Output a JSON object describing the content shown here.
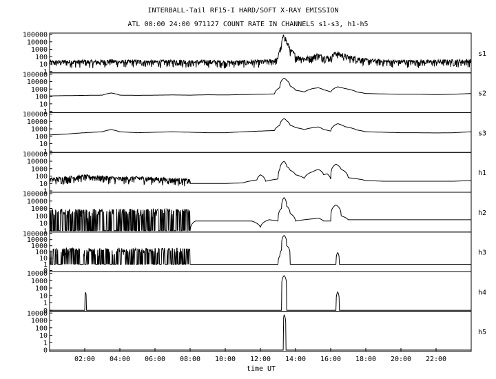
{
  "header": {
    "title_line1": "INTERBALL-Tail RF15-I HARD/SOFT X-RAY EMISSION",
    "title_line2": "ATL 00:00 24:00 971127  COUNT RATE IN CHANNELS s1-s3, h1-h5"
  },
  "colors": {
    "line": "#000000",
    "background": "#ffffff"
  },
  "chart_data": {
    "type": "line",
    "title": "INTERBALL-Tail RF15-I HARD/SOFT X-RAY EMISSION",
    "subtitle": "ATL 00:00 24:00 971127  COUNT RATE IN CHANNELS s1-s3, h1-h5",
    "xlabel": "time UT",
    "xlim": [
      0,
      24
    ],
    "x_ticks": [
      {
        "value": 2,
        "label": "02:00"
      },
      {
        "value": 4,
        "label": "04:00"
      },
      {
        "value": 6,
        "label": "06:00"
      },
      {
        "value": 8,
        "label": "08:00"
      },
      {
        "value": 10,
        "label": "10:00"
      },
      {
        "value": 12,
        "label": "12:00"
      },
      {
        "value": 14,
        "label": "14:00"
      },
      {
        "value": 16,
        "label": "16:00"
      },
      {
        "value": 18,
        "label": "18:00"
      },
      {
        "value": 20,
        "label": "20:00"
      },
      {
        "value": 22,
        "label": "22:00"
      }
    ],
    "y_scale": "log",
    "panels": [
      {
        "name": "s1",
        "y_ticks": [
          "100000",
          "10000",
          "1000",
          "100",
          "10",
          "1"
        ],
        "y_tick_values": [
          100000,
          10000,
          1000,
          100,
          10,
          1
        ],
        "ylim": [
          1,
          100000
        ],
        "points": [
          [
            0,
            8
          ],
          [
            0.5,
            9
          ],
          [
            1,
            10
          ],
          [
            1.5,
            9
          ],
          [
            2,
            10
          ],
          [
            2.5,
            9
          ],
          [
            3,
            10
          ],
          [
            3.5,
            12
          ],
          [
            4,
            9
          ],
          [
            5,
            10
          ],
          [
            6,
            9
          ],
          [
            7,
            10
          ],
          [
            7.5,
            11
          ],
          [
            8,
            8
          ],
          [
            9,
            10
          ],
          [
            9.5,
            9
          ],
          [
            10,
            8
          ],
          [
            11,
            9
          ],
          [
            12,
            10
          ],
          [
            12.5,
            11
          ],
          [
            13,
            18
          ],
          [
            13.2,
            800
          ],
          [
            13.35,
            30000
          ],
          [
            13.5,
            3000
          ],
          [
            13.7,
            300
          ],
          [
            14,
            50
          ],
          [
            14.5,
            25
          ],
          [
            15,
            40
          ],
          [
            15.2,
            80
          ],
          [
            15.5,
            50
          ],
          [
            16,
            30
          ],
          [
            16.3,
            150
          ],
          [
            16.6,
            80
          ],
          [
            17,
            40
          ],
          [
            18,
            15
          ],
          [
            19,
            11
          ],
          [
            20,
            10
          ],
          [
            21,
            10
          ],
          [
            22,
            10
          ],
          [
            23,
            11
          ],
          [
            24,
            12
          ]
        ],
        "noise_until": 24
      },
      {
        "name": "s2",
        "y_ticks": [
          "100000",
          "10000",
          "1000",
          "100",
          "10",
          "1"
        ],
        "y_tick_values": [
          100000,
          10000,
          1000,
          100,
          10,
          1
        ],
        "ylim": [
          1,
          100000
        ],
        "points": [
          [
            0,
            120
          ],
          [
            1,
            130
          ],
          [
            2,
            140
          ],
          [
            3,
            150
          ],
          [
            3.5,
            300
          ],
          [
            4,
            150
          ],
          [
            5,
            140
          ],
          [
            6,
            150
          ],
          [
            7,
            160
          ],
          [
            8,
            150
          ],
          [
            9,
            170
          ],
          [
            10,
            160
          ],
          [
            11,
            180
          ],
          [
            12,
            200
          ],
          [
            12.8,
            220
          ],
          [
            13.1,
            1500
          ],
          [
            13.35,
            30000
          ],
          [
            13.5,
            15000
          ],
          [
            13.7,
            2500
          ],
          [
            14,
            700
          ],
          [
            14.5,
            400
          ],
          [
            15,
            1200
          ],
          [
            15.3,
            1500
          ],
          [
            15.6,
            800
          ],
          [
            16,
            400
          ],
          [
            16.4,
            2000
          ],
          [
            16.8,
            1200
          ],
          [
            17.5,
            400
          ],
          [
            18,
            250
          ],
          [
            19,
            220
          ],
          [
            20,
            200
          ],
          [
            21,
            200
          ],
          [
            22,
            180
          ],
          [
            23,
            200
          ],
          [
            24,
            250
          ]
        ],
        "noise_until": 0
      },
      {
        "name": "s3",
        "y_ticks": [
          "100000",
          "10000",
          "1000",
          "100",
          "10",
          "1"
        ],
        "y_tick_values": [
          100000,
          10000,
          1000,
          100,
          10,
          1
        ],
        "ylim": [
          1,
          100000
        ],
        "points": [
          [
            0,
            150
          ],
          [
            1,
            200
          ],
          [
            2,
            300
          ],
          [
            3,
            400
          ],
          [
            3.5,
            800
          ],
          [
            4,
            400
          ],
          [
            5,
            300
          ],
          [
            6,
            350
          ],
          [
            7,
            400
          ],
          [
            8,
            350
          ],
          [
            9,
            300
          ],
          [
            10,
            300
          ],
          [
            11,
            400
          ],
          [
            12,
            500
          ],
          [
            12.8,
            600
          ],
          [
            13.1,
            3000
          ],
          [
            13.35,
            25000
          ],
          [
            13.5,
            12000
          ],
          [
            13.7,
            3000
          ],
          [
            14,
            1500
          ],
          [
            14.5,
            800
          ],
          [
            15,
            1500
          ],
          [
            15.3,
            1800
          ],
          [
            15.6,
            800
          ],
          [
            16,
            500
          ],
          [
            16.4,
            5000
          ],
          [
            16.8,
            2000
          ],
          [
            17.5,
            700
          ],
          [
            18,
            400
          ],
          [
            19,
            350
          ],
          [
            20,
            300
          ],
          [
            21,
            300
          ],
          [
            22,
            280
          ],
          [
            23,
            300
          ],
          [
            24,
            400
          ]
        ],
        "noise_until": 0
      },
      {
        "name": "h1",
        "y_ticks": [
          "100000",
          "10000",
          "1000",
          "100",
          "10",
          "1"
        ],
        "y_tick_values": [
          100000,
          10000,
          1000,
          100,
          10,
          1
        ],
        "ylim": [
          1,
          100000
        ],
        "points": [
          [
            0,
            15
          ],
          [
            1,
            25
          ],
          [
            2,
            40
          ],
          [
            3,
            30
          ],
          [
            4,
            20
          ],
          [
            5,
            25
          ],
          [
            6,
            20
          ],
          [
            7,
            15
          ],
          [
            7.8,
            12
          ],
          [
            8,
            10
          ],
          [
            9,
            10
          ],
          [
            10,
            10
          ],
          [
            11,
            12
          ],
          [
            11.8,
            30
          ],
          [
            12,
            150
          ],
          [
            12.3,
            20
          ],
          [
            13,
            40
          ],
          [
            13.1,
            800
          ],
          [
            13.35,
            10000
          ],
          [
            13.5,
            2000
          ],
          [
            13.7,
            600
          ],
          [
            14,
            150
          ],
          [
            14.5,
            50
          ],
          [
            15,
            400
          ],
          [
            15.3,
            800
          ],
          [
            15.6,
            150
          ],
          [
            15.8,
            200
          ],
          [
            16,
            40
          ],
          [
            16.3,
            4000
          ],
          [
            16.6,
            800
          ],
          [
            17,
            60
          ],
          [
            18,
            25
          ],
          [
            19,
            20
          ],
          [
            20,
            20
          ],
          [
            21,
            20
          ],
          [
            22,
            20
          ],
          [
            23,
            20
          ],
          [
            24,
            25
          ]
        ],
        "noise_until": 8
      },
      {
        "name": "h2",
        "y_ticks": [
          "100000",
          "10000",
          "1000",
          "100",
          "10",
          "1"
        ],
        "y_tick_values": [
          100000,
          10000,
          1000,
          100,
          10,
          1
        ],
        "ylim": [
          1,
          100000
        ],
        "points": [
          [
            0,
            2
          ],
          [
            7.8,
            2
          ],
          [
            8,
            1
          ],
          [
            8.3,
            20
          ],
          [
            9,
            20
          ],
          [
            10,
            20
          ],
          [
            11,
            20
          ],
          [
            11.5,
            20
          ],
          [
            12,
            3
          ],
          [
            12.5,
            30
          ],
          [
            13,
            20
          ],
          [
            13.2,
            1000
          ],
          [
            13.35,
            30000
          ],
          [
            13.5,
            2000
          ],
          [
            13.7,
            200
          ],
          [
            14,
            20
          ],
          [
            14.5,
            30
          ],
          [
            15,
            40
          ],
          [
            15.3,
            50
          ],
          [
            15.6,
            20
          ],
          [
            16,
            20
          ],
          [
            16.3,
            3000
          ],
          [
            16.6,
            100
          ],
          [
            17,
            30
          ],
          [
            18,
            30
          ],
          [
            19,
            30
          ],
          [
            20,
            30
          ],
          [
            21,
            30
          ],
          [
            22,
            30
          ],
          [
            23,
            30
          ],
          [
            24,
            30
          ]
        ],
        "noise_until": 8
      },
      {
        "name": "h3",
        "y_ticks": [
          "100000",
          "10000",
          "1000",
          "100",
          "10",
          "1",
          "0"
        ],
        "y_tick_values": [
          100000,
          10000,
          1000,
          100,
          10,
          1,
          0
        ],
        "ylim": [
          0,
          100000
        ],
        "points": [
          [
            0,
            1
          ],
          [
            7.8,
            1
          ],
          [
            8,
            1
          ],
          [
            13,
            1
          ],
          [
            13.1,
            20
          ],
          [
            13.2,
            200
          ],
          [
            13.35,
            50000
          ],
          [
            13.5,
            1000
          ],
          [
            13.7,
            1
          ],
          [
            14,
            1
          ],
          [
            16.3,
            1
          ],
          [
            16.4,
            80
          ],
          [
            16.5,
            1
          ],
          [
            24,
            1
          ]
        ],
        "noise_until": 8
      },
      {
        "name": "h4",
        "y_ticks": [
          "10000",
          "1000",
          "100",
          "10",
          "1",
          "0"
        ],
        "y_tick_values": [
          10000,
          1000,
          100,
          10,
          1,
          0
        ],
        "ylim": [
          0,
          10000
        ],
        "points": [
          [
            0,
            0
          ],
          [
            2,
            0
          ],
          [
            2.05,
            30
          ],
          [
            2.1,
            0
          ],
          [
            13,
            0
          ],
          [
            13.2,
            0
          ],
          [
            13.35,
            5000
          ],
          [
            13.5,
            0
          ],
          [
            16.3,
            0
          ],
          [
            16.4,
            30
          ],
          [
            16.5,
            0
          ],
          [
            24,
            0
          ]
        ],
        "noise_until": 0
      },
      {
        "name": "h5",
        "y_ticks": [
          "10000",
          "1000",
          "100",
          "10",
          "1",
          "0"
        ],
        "y_tick_values": [
          10000,
          1000,
          100,
          10,
          1,
          0
        ],
        "ylim": [
          0,
          10000
        ],
        "points": [
          [
            0,
            0
          ],
          [
            13.2,
            0
          ],
          [
            13.3,
            0
          ],
          [
            13.35,
            6000
          ],
          [
            13.45,
            0
          ],
          [
            24,
            0
          ]
        ],
        "noise_until": 0
      }
    ]
  }
}
